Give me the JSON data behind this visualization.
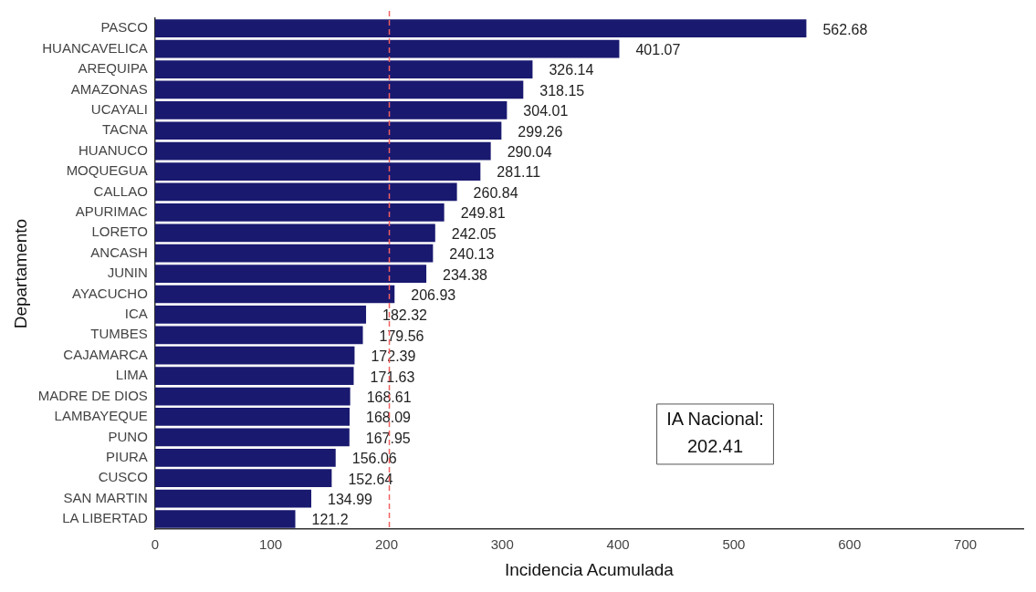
{
  "chart_data": {
    "type": "bar",
    "orientation": "horizontal",
    "xlabel": "Incidencia Acumulada",
    "ylabel": "Departamento",
    "categories": [
      "PASCO",
      "HUANCAVELICA",
      "AREQUIPA",
      "AMAZONAS",
      "UCAYALI",
      "TACNA",
      "HUANUCO",
      "MOQUEGUA",
      "CALLAO",
      "APURIMAC",
      "LORETO",
      "ANCASH",
      "JUNIN",
      "AYACUCHO",
      "ICA",
      "TUMBES",
      "CAJAMARCA",
      "LIMA",
      "MADRE DE DIOS",
      "LAMBAYEQUE",
      "PUNO",
      "PIURA",
      "CUSCO",
      "SAN MARTIN",
      "LA LIBERTAD"
    ],
    "values": [
      562.68,
      401.07,
      326.14,
      318.15,
      304.01,
      299.26,
      290.04,
      281.11,
      260.84,
      249.81,
      242.05,
      240.13,
      234.38,
      206.93,
      182.32,
      179.56,
      172.39,
      171.63,
      168.61,
      168.09,
      167.95,
      156.06,
      152.64,
      134.99,
      121.2
    ],
    "color": "#191970",
    "xlim": [
      0,
      750
    ],
    "xticks": [
      0,
      100,
      200,
      300,
      400,
      500,
      600,
      700
    ],
    "data_labels": true,
    "grid": false,
    "legend": false,
    "annotations": [
      "IA Nacional:\n202.41"
    ],
    "ref_lines": [
      {
        "axis": "x",
        "value": 202.41,
        "color": "#f06060",
        "line_style": "dashed"
      }
    ]
  }
}
